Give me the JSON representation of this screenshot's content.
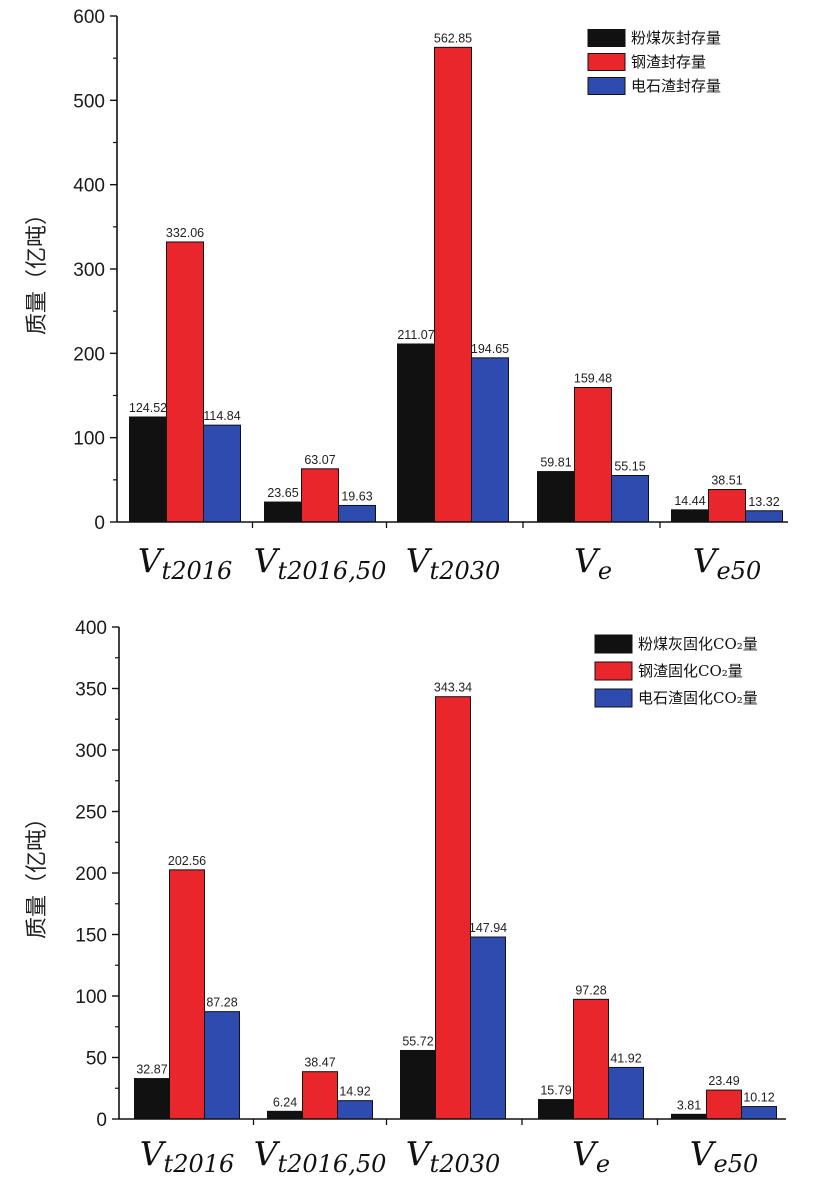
{
  "colors": {
    "black": "#111111",
    "red": "#e8262b",
    "blue": "#2e4bb0"
  },
  "chart_data": [
    {
      "type": "bar",
      "ylabel": "质量（亿吨）",
      "categories": [
        {
          "main": "V",
          "sub": "t2016"
        },
        {
          "main": "V",
          "sub": "t2016,50"
        },
        {
          "main": "V",
          "sub": "t2030"
        },
        {
          "main": "V",
          "sub": "e"
        },
        {
          "main": "V",
          "sub": "e50"
        }
      ],
      "ylim": [
        0,
        600
      ],
      "yticks": [
        0,
        100,
        200,
        300,
        400,
        500,
        600
      ],
      "legend_position": "top-right",
      "series": [
        {
          "name": "粉煤灰封存量",
          "color": "black",
          "values": [
            124.52,
            23.65,
            211.07,
            59.81,
            14.44
          ],
          "labels": [
            "124.52",
            "23.65",
            "211.07",
            "59.81",
            "14.44"
          ]
        },
        {
          "name": "钢渣封存量",
          "color": "red",
          "values": [
            332.06,
            63.07,
            562.85,
            159.48,
            38.51
          ],
          "labels": [
            "332.06",
            "63.07",
            "562.85",
            "159.48",
            "38.51"
          ]
        },
        {
          "name": "电石渣封存量",
          "color": "blue",
          "values": [
            114.84,
            19.63,
            194.65,
            55.15,
            13.32
          ],
          "labels": [
            "114.84",
            "19.63",
            "194.65",
            "55.15",
            "13.32"
          ]
        }
      ]
    },
    {
      "type": "bar",
      "ylabel": "质量（亿吨）",
      "categories": [
        {
          "main": "V",
          "sub": "t2016"
        },
        {
          "main": "V",
          "sub": "t2016,50"
        },
        {
          "main": "V",
          "sub": "t2030"
        },
        {
          "main": "V",
          "sub": "e"
        },
        {
          "main": "V",
          "sub": "e50"
        }
      ],
      "ylim": [
        0,
        400
      ],
      "yticks": [
        0,
        50,
        100,
        150,
        200,
        250,
        300,
        350,
        400
      ],
      "legend_position": "top-right",
      "series": [
        {
          "name": "粉煤灰固化CO₂量",
          "color": "black",
          "values": [
            32.87,
            6.24,
            55.72,
            15.79,
            3.81
          ],
          "labels": [
            "32.87",
            "6.24",
            "55.72",
            "15.79",
            "3.81"
          ]
        },
        {
          "name": "钢渣固化CO₂量",
          "color": "red",
          "values": [
            202.56,
            38.47,
            343.34,
            97.28,
            23.49
          ],
          "labels": [
            "202.56",
            "38.47",
            "343.34",
            "97.28",
            "23.49"
          ]
        },
        {
          "name": "电石渣固化CO₂量",
          "color": "blue",
          "values": [
            87.28,
            14.92,
            147.94,
            41.92,
            10.12
          ],
          "labels": [
            "87.28",
            "14.92",
            "147.94",
            "41.92",
            "10.12"
          ]
        }
      ]
    }
  ]
}
